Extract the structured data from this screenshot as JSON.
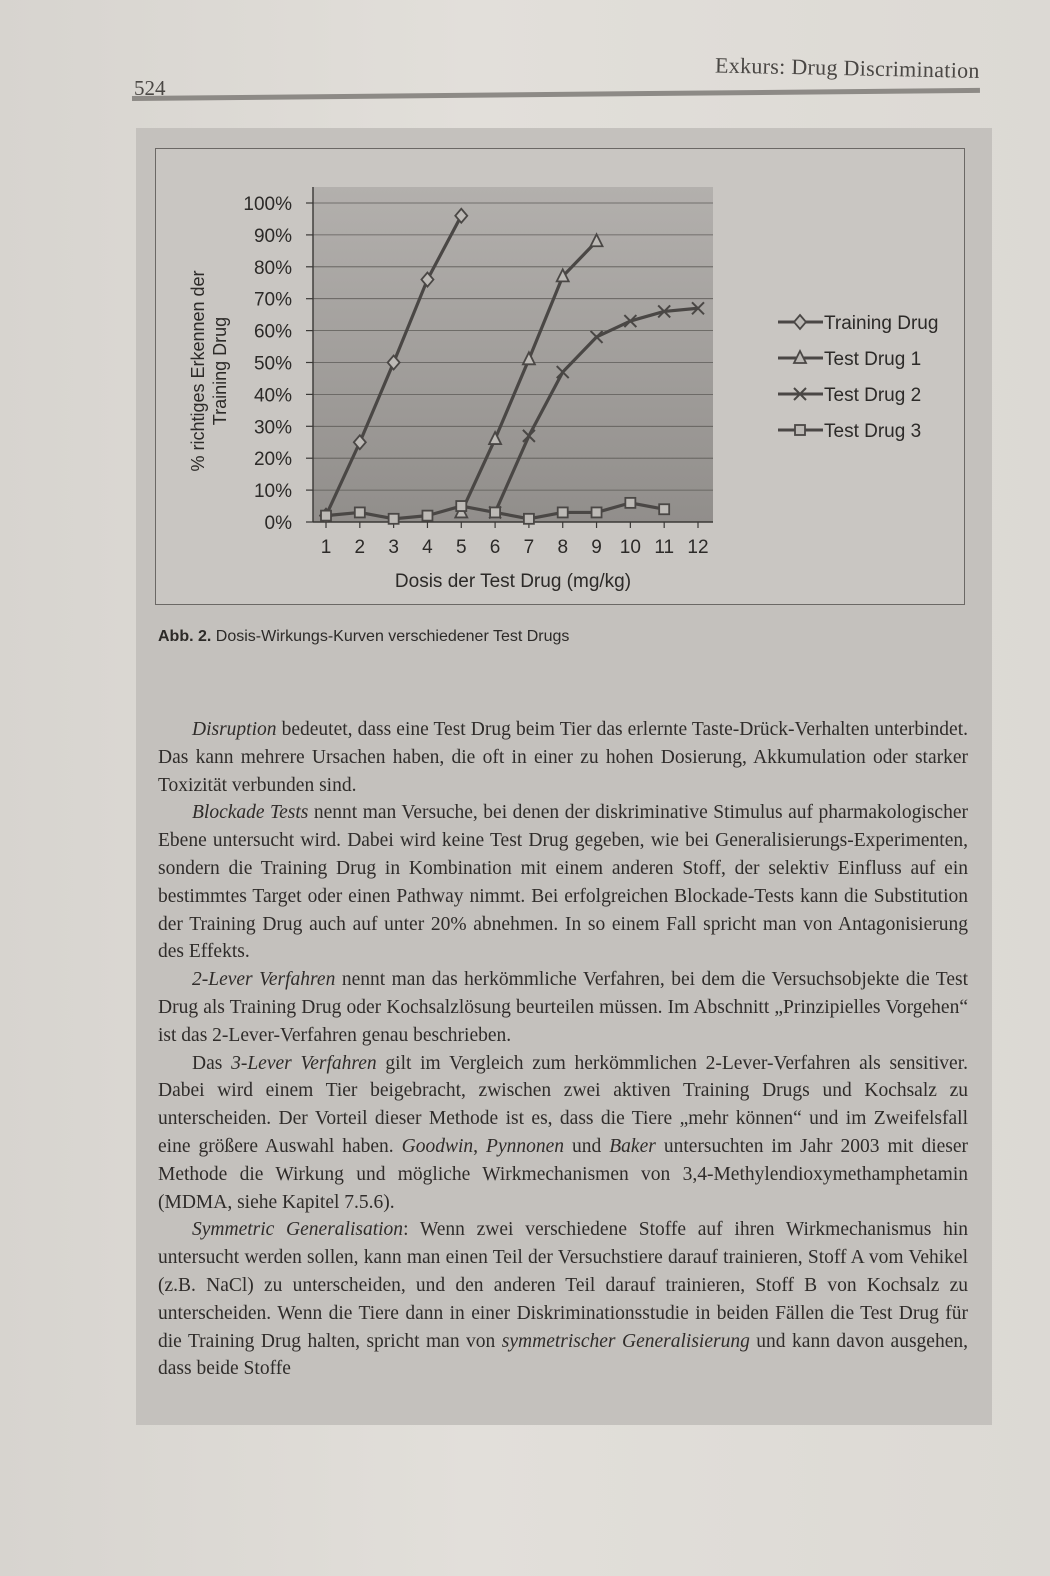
{
  "header": {
    "page_number": "524",
    "running_head": "Exkurs: Drug Discrimination"
  },
  "figure": {
    "caption_label": "Abb. 2.",
    "caption_text": "Dosis-Wirkungs-Kurven verschiedener Test Drugs"
  },
  "chart_data": {
    "type": "line",
    "xlabel": "Dosis der Test Drug (mg/kg)",
    "ylabel_line1": "% richtiges Erkennen der",
    "ylabel_line2": "Training Drug",
    "x_ticks": [
      "1",
      "2",
      "3",
      "4",
      "5",
      "6",
      "7",
      "8",
      "9",
      "10",
      "11",
      "12"
    ],
    "y_ticks": [
      "0%",
      "10%",
      "20%",
      "30%",
      "40%",
      "50%",
      "60%",
      "70%",
      "80%",
      "90%",
      "100%"
    ],
    "ylim": [
      0,
      100
    ],
    "xlim": [
      1,
      12
    ],
    "grid": true,
    "legend_position": "right",
    "series": [
      {
        "name": "Training Drug",
        "marker": "diamond",
        "x": [
          1,
          2,
          3,
          4,
          5
        ],
        "y": [
          2,
          25,
          50,
          76,
          96
        ]
      },
      {
        "name": "Test Drug 1",
        "marker": "triangle",
        "x": [
          5,
          6,
          7,
          8,
          9
        ],
        "y": [
          3,
          26,
          51,
          77,
          88
        ]
      },
      {
        "name": "Test Drug 2",
        "marker": "x",
        "x": [
          6,
          7,
          8,
          9,
          10,
          11,
          12
        ],
        "y": [
          3,
          27,
          47,
          58,
          63,
          66,
          67
        ]
      },
      {
        "name": "Test Drug 3",
        "marker": "square",
        "x": [
          1,
          2,
          3,
          4,
          5,
          6,
          7,
          8,
          9,
          10,
          11
        ],
        "y": [
          2,
          3,
          1,
          2,
          5,
          3,
          1,
          3,
          3,
          6,
          4
        ]
      }
    ]
  },
  "body": {
    "p1_em": "Disruption",
    "p1": " bedeutet, dass eine Test Drug beim Tier das erlernte Taste-Drück-Verhalten unterbindet. Das kann mehrere Ursachen haben, die oft in einer zu hohen Dosierung, Akkumulation oder starker Toxizität verbunden sind.",
    "p2_em": "Blockade Tests",
    "p2": " nennt man Versuche, bei denen der diskriminative Stimulus auf pharmakologischer Ebene untersucht wird. Dabei wird keine Test Drug gegeben, wie bei Generalisierungs-Experimenten, sondern die Training Drug in Kombination mit einem anderen Stoff, der selektiv Einfluss auf ein bestimmtes Target oder einen Pathway nimmt. Bei erfolgreichen Blockade-Tests kann die Substitution der Training Drug auch auf unter 20% abnehmen. In so einem Fall spricht man von Antagonisierung des Effekts.",
    "p3_em": "2-Lever Verfahren",
    "p3": " nennt man das herkömmliche Verfahren, bei dem die Versuchsobjekte die Test Drug als Training Drug oder Kochsalzlösung beurteilen müssen. Im Abschnitt „Prinzipielles Vorgehen“ ist das 2-Lever-Verfahren genau beschrieben.",
    "p4_pre": "Das ",
    "p4_em": "3-Lever Verfahren",
    "p4_mid": " gilt im Vergleich zum herkömmlichen 2-Lever-Verfahren als sensitiver. Dabei wird einem Tier beigebracht, zwischen zwei aktiven Training Drugs und Kochsalz zu unterscheiden. Der Vorteil dieser Methode ist es, dass die Tiere „mehr können“ und im Zweifelsfall eine größere Auswahl haben. ",
    "p4_em2": "Goodwin",
    "p4_comma": ", ",
    "p4_em3": "Pynnonen",
    "p4_und": " und ",
    "p4_em4": "Baker",
    "p4_end": " untersuchten im Jahr 2003 mit dieser Methode die Wirkung und mögliche Wirkmechanismen von 3,4-Methylendioxymethamphetamin (MDMA, siehe Kapitel 7.5.6).",
    "p5_em": "Symmetric Generalisation",
    "p5_mid": ": Wenn zwei verschiedene Stoffe auf ihren Wirkmechanismus hin untersucht werden sollen, kann man einen Teil der Versuchstiere darauf trainieren, Stoff A vom Vehikel (z.B. NaCl) zu unterscheiden, und den anderen Teil darauf trainieren, Stoff B von Kochsalz zu unterscheiden. Wenn die Tiere dann in einer Diskriminationsstudie in beiden Fällen die Test Drug für die Training Drug halten, spricht man von ",
    "p5_em2": "symmetrischer Generalisierung",
    "p5_end": " und kann davon ausgehen, dass beide Stoffe"
  }
}
